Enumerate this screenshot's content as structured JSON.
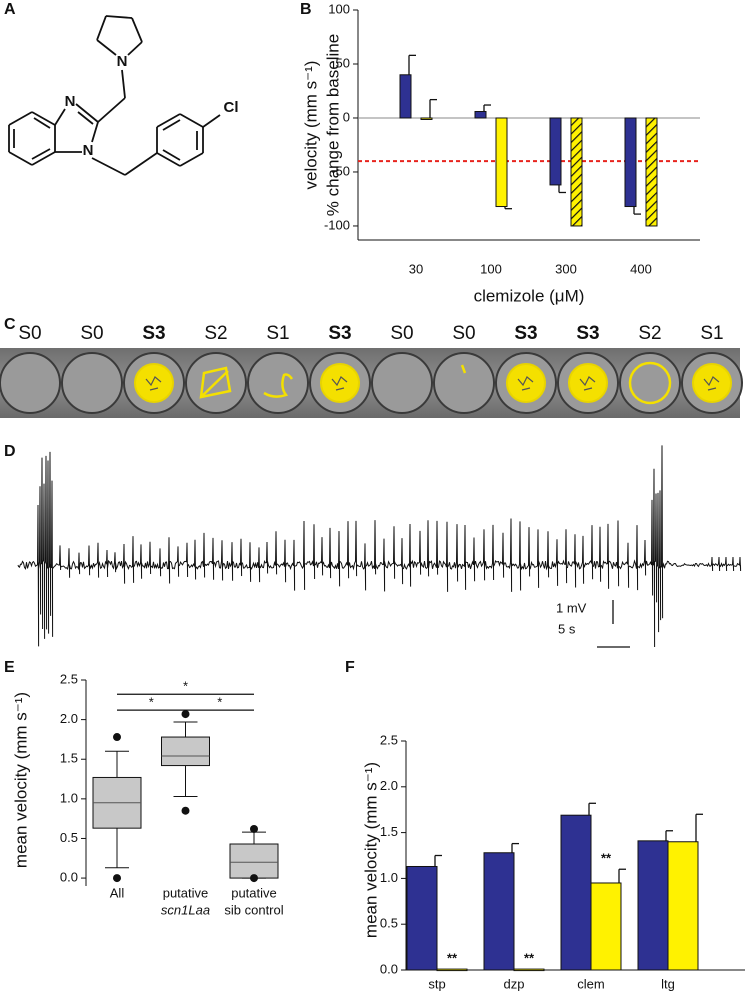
{
  "panel_labels": [
    "A",
    "B",
    "C",
    "D",
    "E",
    "F"
  ],
  "structure": {
    "atoms": [
      "N",
      "N",
      "N",
      "Cl"
    ]
  },
  "wells": {
    "labels": [
      "S0",
      "S0",
      "S3",
      "S2",
      "S1",
      "S3",
      "S0",
      "S0",
      "S3",
      "S3",
      "S2",
      "S1"
    ],
    "bold": [
      false,
      false,
      true,
      false,
      false,
      true,
      false,
      false,
      true,
      true,
      false,
      false
    ]
  },
  "trace": {
    "scale_labels": [
      "1 mV",
      "5 s"
    ]
  },
  "chart_data": [
    {
      "type": "bar",
      "xlabel": "clemizole (μM)",
      "ylabel": [
        "velocity (mm s⁻¹)",
        "% change from baseline"
      ],
      "categories": [
        "30",
        "100",
        "300",
        "400"
      ],
      "series": [
        {
          "color": "#2e3192",
          "values": [
            40,
            6,
            -62,
            -82
          ],
          "errors": [
            18,
            6,
            7,
            7
          ]
        },
        {
          "color": "#fff200",
          "values": [
            0,
            -82,
            -100,
            -100
          ],
          "errors": [
            17,
            2,
            null,
            null
          ],
          "hatched": [
            false,
            false,
            true,
            true
          ]
        }
      ],
      "ylim": [
        -113,
        100
      ],
      "yticks": [
        100,
        50,
        0,
        -50,
        -100
      ],
      "reference_line": {
        "value": -40,
        "color": "#e8231d"
      }
    },
    {
      "type": "box",
      "ylabel": "mean velocity (mm s⁻¹)",
      "categories": [
        {
          "lines": [
            "All"
          ],
          "italic": [
            false
          ]
        },
        {
          "lines": [
            "putative",
            "scn1Laa"
          ],
          "italic": [
            false,
            true
          ]
        },
        {
          "lines": [
            "putative",
            "sib control"
          ],
          "italic": [
            false,
            false
          ]
        }
      ],
      "color": "#c8c8c8",
      "boxes": [
        {
          "whislo": 0.13,
          "q1": 0.63,
          "med": 0.95,
          "q3": 1.27,
          "whishi": 1.6,
          "fliers": [
            0.0,
            1.78
          ]
        },
        {
          "whislo": 1.03,
          "q1": 1.42,
          "med": 1.54,
          "q3": 1.78,
          "whishi": 1.97,
          "fliers": [
            0.85,
            2.07
          ]
        },
        {
          "whislo": 0.0,
          "q1": 0.0,
          "med": 0.2,
          "q3": 0.43,
          "whishi": 0.58,
          "fliers": [
            0.0,
            0.62
          ]
        }
      ],
      "significance": [
        {
          "from": 0,
          "to": 2,
          "y": 2.32,
          "label": "*"
        },
        {
          "from": 0,
          "to": 1,
          "y": 2.12,
          "label": "*"
        },
        {
          "from": 1,
          "to": 2,
          "y": 2.12,
          "label": "*"
        }
      ],
      "ylim": [
        -0.1,
        2.5
      ],
      "yticks": [
        {
          "value": 0,
          "label": "0.0"
        },
        {
          "value": 0.5,
          "label": "0.5"
        },
        {
          "value": 1,
          "label": "1.0"
        },
        {
          "value": 1.5,
          "label": "1.5"
        },
        {
          "value": 2,
          "label": "2.0"
        },
        {
          "value": 2.5,
          "label": "2.5"
        }
      ]
    },
    {
      "type": "bar",
      "ylabel": "mean velocity (mm s⁻¹)",
      "categories": [
        "stp",
        "dzp",
        "clem",
        "ltg"
      ],
      "series": [
        {
          "color": "#2e3192",
          "values": [
            1.13,
            1.28,
            1.69,
            1.41
          ],
          "errors": [
            0.12,
            0.1,
            0.13,
            0.11
          ]
        },
        {
          "color": "#fff200",
          "values": [
            0.01,
            0.01,
            0.95,
            1.4
          ],
          "errors": [
            null,
            null,
            0.15,
            0.3
          ],
          "annotations": [
            "**",
            "**",
            "**",
            null
          ]
        }
      ],
      "ylim": [
        0,
        2.5
      ],
      "yticks": [
        {
          "value": 0,
          "label": "0.0"
        },
        {
          "value": 0.5,
          "label": "0.5"
        },
        {
          "value": 1,
          "label": "1.0"
        },
        {
          "value": 1.5,
          "label": "1.5"
        },
        {
          "value": 2,
          "label": "2.0"
        },
        {
          "value": 2.5,
          "label": "2.5"
        }
      ]
    }
  ]
}
